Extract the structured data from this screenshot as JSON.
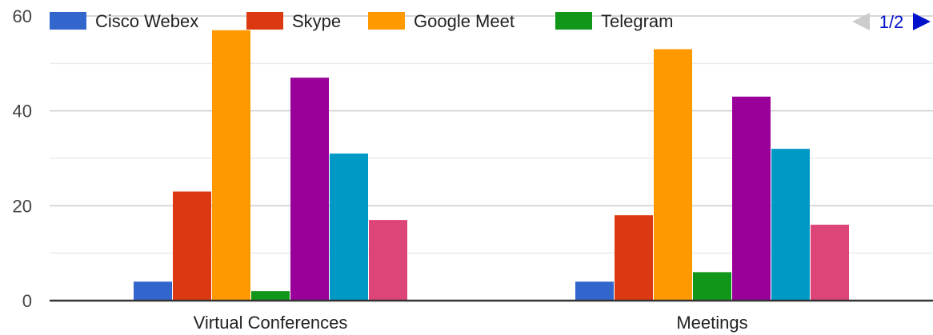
{
  "chart_data": {
    "type": "bar",
    "categories": [
      "Virtual Conferences",
      "Meetings"
    ],
    "series": [
      {
        "name": "Cisco Webex",
        "color": "#3366cc",
        "values": [
          4,
          4
        ]
      },
      {
        "name": "Skype",
        "color": "#dc3912",
        "values": [
          23,
          18
        ]
      },
      {
        "name": "Google Meet",
        "color": "#ff9900",
        "values": [
          57,
          53
        ]
      },
      {
        "name": "Telegram",
        "color": "#109618",
        "values": [
          2,
          6
        ]
      },
      {
        "color": "#990099",
        "values": [
          47,
          43
        ]
      },
      {
        "color": "#0099c6",
        "values": [
          31,
          32
        ]
      },
      {
        "color": "#dd4477",
        "values": [
          17,
          16
        ]
      }
    ],
    "ylim": [
      0,
      60
    ],
    "yticks": [
      0,
      20,
      40,
      60
    ],
    "minor_gridlines": [
      10,
      30,
      50
    ],
    "grid": true,
    "legend": {
      "position": "top",
      "page_label": "1/2",
      "prev_icon": "triangle-left-icon",
      "next_icon": "triangle-right-icon",
      "prev_color": "#cccccc",
      "next_color": "#0011cc"
    }
  }
}
